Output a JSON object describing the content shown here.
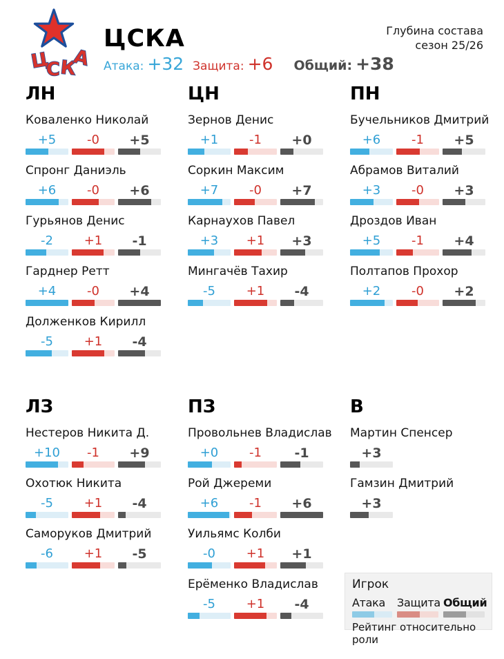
{
  "header": {
    "team_name": "ЦСКА",
    "subtitle_line1": "Глубина состава",
    "subtitle_line2": "сезон 25/26",
    "stats": {
      "attack_label": "Атака:",
      "attack_value": "+32",
      "defense_label": "Защита:",
      "defense_value": "+6",
      "overall_label": "Общий:",
      "overall_value": "+38"
    },
    "logo_letters": [
      "Ц",
      "С",
      "К",
      "А"
    ]
  },
  "colors": {
    "attack": "#42AFE0",
    "attack_track": "#DDEEF7",
    "attack_text": "#2F9FD4",
    "defense": "#D93A31",
    "defense_track": "#F8DCD9",
    "defense_text": "#CF322B",
    "overall": "#575757",
    "overall_track": "#E9E9E9",
    "overall_text": "#4A4A4A",
    "logo_star": "#E0312A",
    "logo_outline": "#1D4F9C",
    "legend_bg": "#F2F2F2"
  },
  "sections": [
    {
      "columns": [
        {
          "code": "ЛН",
          "players": [
            {
              "name": "Коваленко Николай",
              "ratings": [
                {
                  "type": "attack",
                  "value": "+5",
                  "fill": 53
                },
                {
                  "type": "defense",
                  "value": "-0",
                  "fill": 76
                },
                {
                  "type": "overall",
                  "value": "+5",
                  "fill": 52
                }
              ]
            },
            {
              "name": "Спронг Даниэль",
              "ratings": [
                {
                  "type": "attack",
                  "value": "+6",
                  "fill": 77
                },
                {
                  "type": "defense",
                  "value": "-0",
                  "fill": 63
                },
                {
                  "type": "overall",
                  "value": "+6",
                  "fill": 78
                }
              ]
            },
            {
              "name": "Гурьянов Денис",
              "ratings": [
                {
                  "type": "attack",
                  "value": "-2",
                  "fill": 48
                },
                {
                  "type": "defense",
                  "value": "+1",
                  "fill": 74
                },
                {
                  "type": "overall",
                  "value": "-1",
                  "fill": 51
                }
              ]
            },
            {
              "name": "Гарднер Ретт",
              "ratings": [
                {
                  "type": "attack",
                  "value": "+4",
                  "fill": 100
                },
                {
                  "type": "defense",
                  "value": "-0",
                  "fill": 53
                },
                {
                  "type": "overall",
                  "value": "+4",
                  "fill": 100
                }
              ]
            },
            {
              "name": "Долженков Кирилл",
              "ratings": [
                {
                  "type": "attack",
                  "value": "-5",
                  "fill": 62
                },
                {
                  "type": "defense",
                  "value": "+1",
                  "fill": 75
                },
                {
                  "type": "overall",
                  "value": "-4",
                  "fill": 63
                }
              ]
            }
          ]
        },
        {
          "code": "ЦН",
          "players": [
            {
              "name": "Зернов Денис",
              "ratings": [
                {
                  "type": "attack",
                  "value": "+1",
                  "fill": 38
                },
                {
                  "type": "defense",
                  "value": "-1",
                  "fill": 33
                },
                {
                  "type": "overall",
                  "value": "+0",
                  "fill": 30
                }
              ]
            },
            {
              "name": "Соркин Максим",
              "ratings": [
                {
                  "type": "attack",
                  "value": "+7",
                  "fill": 80
                },
                {
                  "type": "defense",
                  "value": "-0",
                  "fill": 48
                },
                {
                  "type": "overall",
                  "value": "+7",
                  "fill": 80
                }
              ]
            },
            {
              "name": "Карнаухов Павел",
              "ratings": [
                {
                  "type": "attack",
                  "value": "+3",
                  "fill": 62
                },
                {
                  "type": "defense",
                  "value": "+1",
                  "fill": 65
                },
                {
                  "type": "overall",
                  "value": "+3",
                  "fill": 58
                }
              ]
            },
            {
              "name": "Мингачёв Тахир",
              "ratings": [
                {
                  "type": "attack",
                  "value": "-5",
                  "fill": 36
                },
                {
                  "type": "defense",
                  "value": "+1",
                  "fill": 78
                },
                {
                  "type": "overall",
                  "value": "-4",
                  "fill": 33
                }
              ]
            }
          ]
        },
        {
          "code": "ПН",
          "players": [
            {
              "name": "Бучельников Дмитрий",
              "ratings": [
                {
                  "type": "attack",
                  "value": "+6",
                  "fill": 45
                },
                {
                  "type": "defense",
                  "value": "-1",
                  "fill": 55
                },
                {
                  "type": "overall",
                  "value": "+5",
                  "fill": 45
                }
              ]
            },
            {
              "name": "Абрамов Виталий",
              "ratings": [
                {
                  "type": "attack",
                  "value": "+3",
                  "fill": 55
                },
                {
                  "type": "defense",
                  "value": "-0",
                  "fill": 53
                },
                {
                  "type": "overall",
                  "value": "+3",
                  "fill": 53
                }
              ]
            },
            {
              "name": "Дроздов Иван",
              "ratings": [
                {
                  "type": "attack",
                  "value": "+5",
                  "fill": 70
                },
                {
                  "type": "defense",
                  "value": "-1",
                  "fill": 38
                },
                {
                  "type": "overall",
                  "value": "+4",
                  "fill": 67
                }
              ]
            },
            {
              "name": "Полтапов Прохор",
              "ratings": [
                {
                  "type": "attack",
                  "value": "+2",
                  "fill": 80
                },
                {
                  "type": "defense",
                  "value": "-0",
                  "fill": 50
                },
                {
                  "type": "overall",
                  "value": "+2",
                  "fill": 77
                }
              ]
            }
          ]
        }
      ]
    },
    {
      "columns": [
        {
          "code": "ЛЗ",
          "players": [
            {
              "name": "Нестеров Никита Д.",
              "ratings": [
                {
                  "type": "attack",
                  "value": "+10",
                  "fill": 75
                },
                {
                  "type": "defense",
                  "value": "-1",
                  "fill": 27
                },
                {
                  "type": "overall",
                  "value": "+9",
                  "fill": 63
                }
              ]
            },
            {
              "name": "Охотюк Никита",
              "ratings": [
                {
                  "type": "attack",
                  "value": "-5",
                  "fill": 24
                },
                {
                  "type": "defense",
                  "value": "+1",
                  "fill": 66
                },
                {
                  "type": "overall",
                  "value": "-4",
                  "fill": 18
                }
              ]
            },
            {
              "name": "Саморуков Дмитрий",
              "ratings": [
                {
                  "type": "attack",
                  "value": "-6",
                  "fill": 26
                },
                {
                  "type": "defense",
                  "value": "+1",
                  "fill": 66
                },
                {
                  "type": "overall",
                  "value": "-5",
                  "fill": 20
                }
              ]
            }
          ]
        },
        {
          "code": "ПЗ",
          "players": [
            {
              "name": "Провольнев Владислав",
              "ratings": [
                {
                  "type": "attack",
                  "value": "+0",
                  "fill": 57
                },
                {
                  "type": "defense",
                  "value": "-1",
                  "fill": 17
                },
                {
                  "type": "overall",
                  "value": "-1",
                  "fill": 47
                }
              ]
            },
            {
              "name": "Рой Джереми",
              "ratings": [
                {
                  "type": "attack",
                  "value": "+6",
                  "fill": 97
                },
                {
                  "type": "defense",
                  "value": "-1",
                  "fill": 42
                },
                {
                  "type": "overall",
                  "value": "+6",
                  "fill": 100
                }
              ]
            },
            {
              "name": "Уильямс Колби",
              "ratings": [
                {
                  "type": "attack",
                  "value": "-0",
                  "fill": 57
                },
                {
                  "type": "defense",
                  "value": "+1",
                  "fill": 73
                },
                {
                  "type": "overall",
                  "value": "+1",
                  "fill": 60
                }
              ]
            },
            {
              "name": "Ерёменко Владислав",
              "ratings": [
                {
                  "type": "attack",
                  "value": "-5",
                  "fill": 28
                },
                {
                  "type": "defense",
                  "value": "+1",
                  "fill": 75
                },
                {
                  "type": "overall",
                  "value": "-4",
                  "fill": 25
                }
              ]
            }
          ]
        },
        {
          "code": "В",
          "players": [
            {
              "name": "Мартин Спенсер",
              "ratings": [
                {
                  "type": "overall",
                  "value": "+3",
                  "fill": 23
                }
              ]
            },
            {
              "name": "Гамзин Дмитрий",
              "ratings": [
                {
                  "type": "overall",
                  "value": "+3",
                  "fill": 44
                }
              ]
            }
          ]
        }
      ]
    }
  ],
  "legend": {
    "player_label": "Игрок",
    "attack_label": "Атака",
    "defense_label": "Защита",
    "overall_label": "Общий",
    "note": "Рейтинг относительно роли"
  },
  "chart_data": {
    "type": "bar",
    "title": "ЦСКА — Глубина состава, сезон 25/26",
    "note": "Рейтинг относительно роли",
    "team_totals": {
      "attack": 32,
      "defense": 6,
      "overall": 38
    },
    "series_names": [
      "Атака",
      "Защита",
      "Общий"
    ],
    "positions": [
      {
        "code": "ЛН",
        "players": [
          {
            "name": "Коваленко Николай",
            "attack": 5,
            "defense": 0,
            "overall": 5,
            "bar_fill_pct": [
              53,
              76,
              52
            ]
          },
          {
            "name": "Спронг Даниэль",
            "attack": 6,
            "defense": 0,
            "overall": 6,
            "bar_fill_pct": [
              77,
              63,
              78
            ]
          },
          {
            "name": "Гурьянов Денис",
            "attack": -2,
            "defense": 1,
            "overall": -1,
            "bar_fill_pct": [
              48,
              74,
              51
            ]
          },
          {
            "name": "Гарднер Ретт",
            "attack": 4,
            "defense": 0,
            "overall": 4,
            "bar_fill_pct": [
              100,
              53,
              100
            ]
          },
          {
            "name": "Долженков Кирилл",
            "attack": -5,
            "defense": 1,
            "overall": -4,
            "bar_fill_pct": [
              62,
              75,
              63
            ]
          }
        ]
      },
      {
        "code": "ЦН",
        "players": [
          {
            "name": "Зернов Денис",
            "attack": 1,
            "defense": -1,
            "overall": 0,
            "bar_fill_pct": [
              38,
              33,
              30
            ]
          },
          {
            "name": "Соркин Максим",
            "attack": 7,
            "defense": 0,
            "overall": 7,
            "bar_fill_pct": [
              80,
              48,
              80
            ]
          },
          {
            "name": "Карнаухов Павел",
            "attack": 3,
            "defense": 1,
            "overall": 3,
            "bar_fill_pct": [
              62,
              65,
              58
            ]
          },
          {
            "name": "Мингачёв Тахир",
            "attack": -5,
            "defense": 1,
            "overall": -4,
            "bar_fill_pct": [
              36,
              78,
              33
            ]
          }
        ]
      },
      {
        "code": "ПН",
        "players": [
          {
            "name": "Бучельников Дмитрий",
            "attack": 6,
            "defense": -1,
            "overall": 5,
            "bar_fill_pct": [
              45,
              55,
              45
            ]
          },
          {
            "name": "Абрамов Виталий",
            "attack": 3,
            "defense": 0,
            "overall": 3,
            "bar_fill_pct": [
              55,
              53,
              53
            ]
          },
          {
            "name": "Дроздов Иван",
            "attack": 5,
            "defense": -1,
            "overall": 4,
            "bar_fill_pct": [
              70,
              38,
              67
            ]
          },
          {
            "name": "Полтапов Прохор",
            "attack": 2,
            "defense": 0,
            "overall": 2,
            "bar_fill_pct": [
              80,
              50,
              77
            ]
          }
        ]
      },
      {
        "code": "ЛЗ",
        "players": [
          {
            "name": "Нестеров Никита Д.",
            "attack": 10,
            "defense": -1,
            "overall": 9,
            "bar_fill_pct": [
              75,
              27,
              63
            ]
          },
          {
            "name": "Охотюк Никита",
            "attack": -5,
            "defense": 1,
            "overall": -4,
            "bar_fill_pct": [
              24,
              66,
              18
            ]
          },
          {
            "name": "Саморуков Дмитрий",
            "attack": -6,
            "defense": 1,
            "overall": -5,
            "bar_fill_pct": [
              26,
              66,
              20
            ]
          }
        ]
      },
      {
        "code": "ПЗ",
        "players": [
          {
            "name": "Провольнев Владислав",
            "attack": 0,
            "defense": -1,
            "overall": -1,
            "bar_fill_pct": [
              57,
              17,
              47
            ]
          },
          {
            "name": "Рой Джереми",
            "attack": 6,
            "defense": -1,
            "overall": 6,
            "bar_fill_pct": [
              97,
              42,
              100
            ]
          },
          {
            "name": "Уильямс Колби",
            "attack": 0,
            "defense": 1,
            "overall": 1,
            "bar_fill_pct": [
              57,
              73,
              60
            ]
          },
          {
            "name": "Ерёменко Владислав",
            "attack": -5,
            "defense": 1,
            "overall": -4,
            "bar_fill_pct": [
              28,
              75,
              25
            ]
          }
        ]
      },
      {
        "code": "В",
        "players": [
          {
            "name": "Мартин Спенсер",
            "overall": 3,
            "bar_fill_pct": [
              23
            ]
          },
          {
            "name": "Гамзин Дмитрий",
            "overall": 3,
            "bar_fill_pct": [
              44
            ]
          }
        ]
      }
    ]
  }
}
